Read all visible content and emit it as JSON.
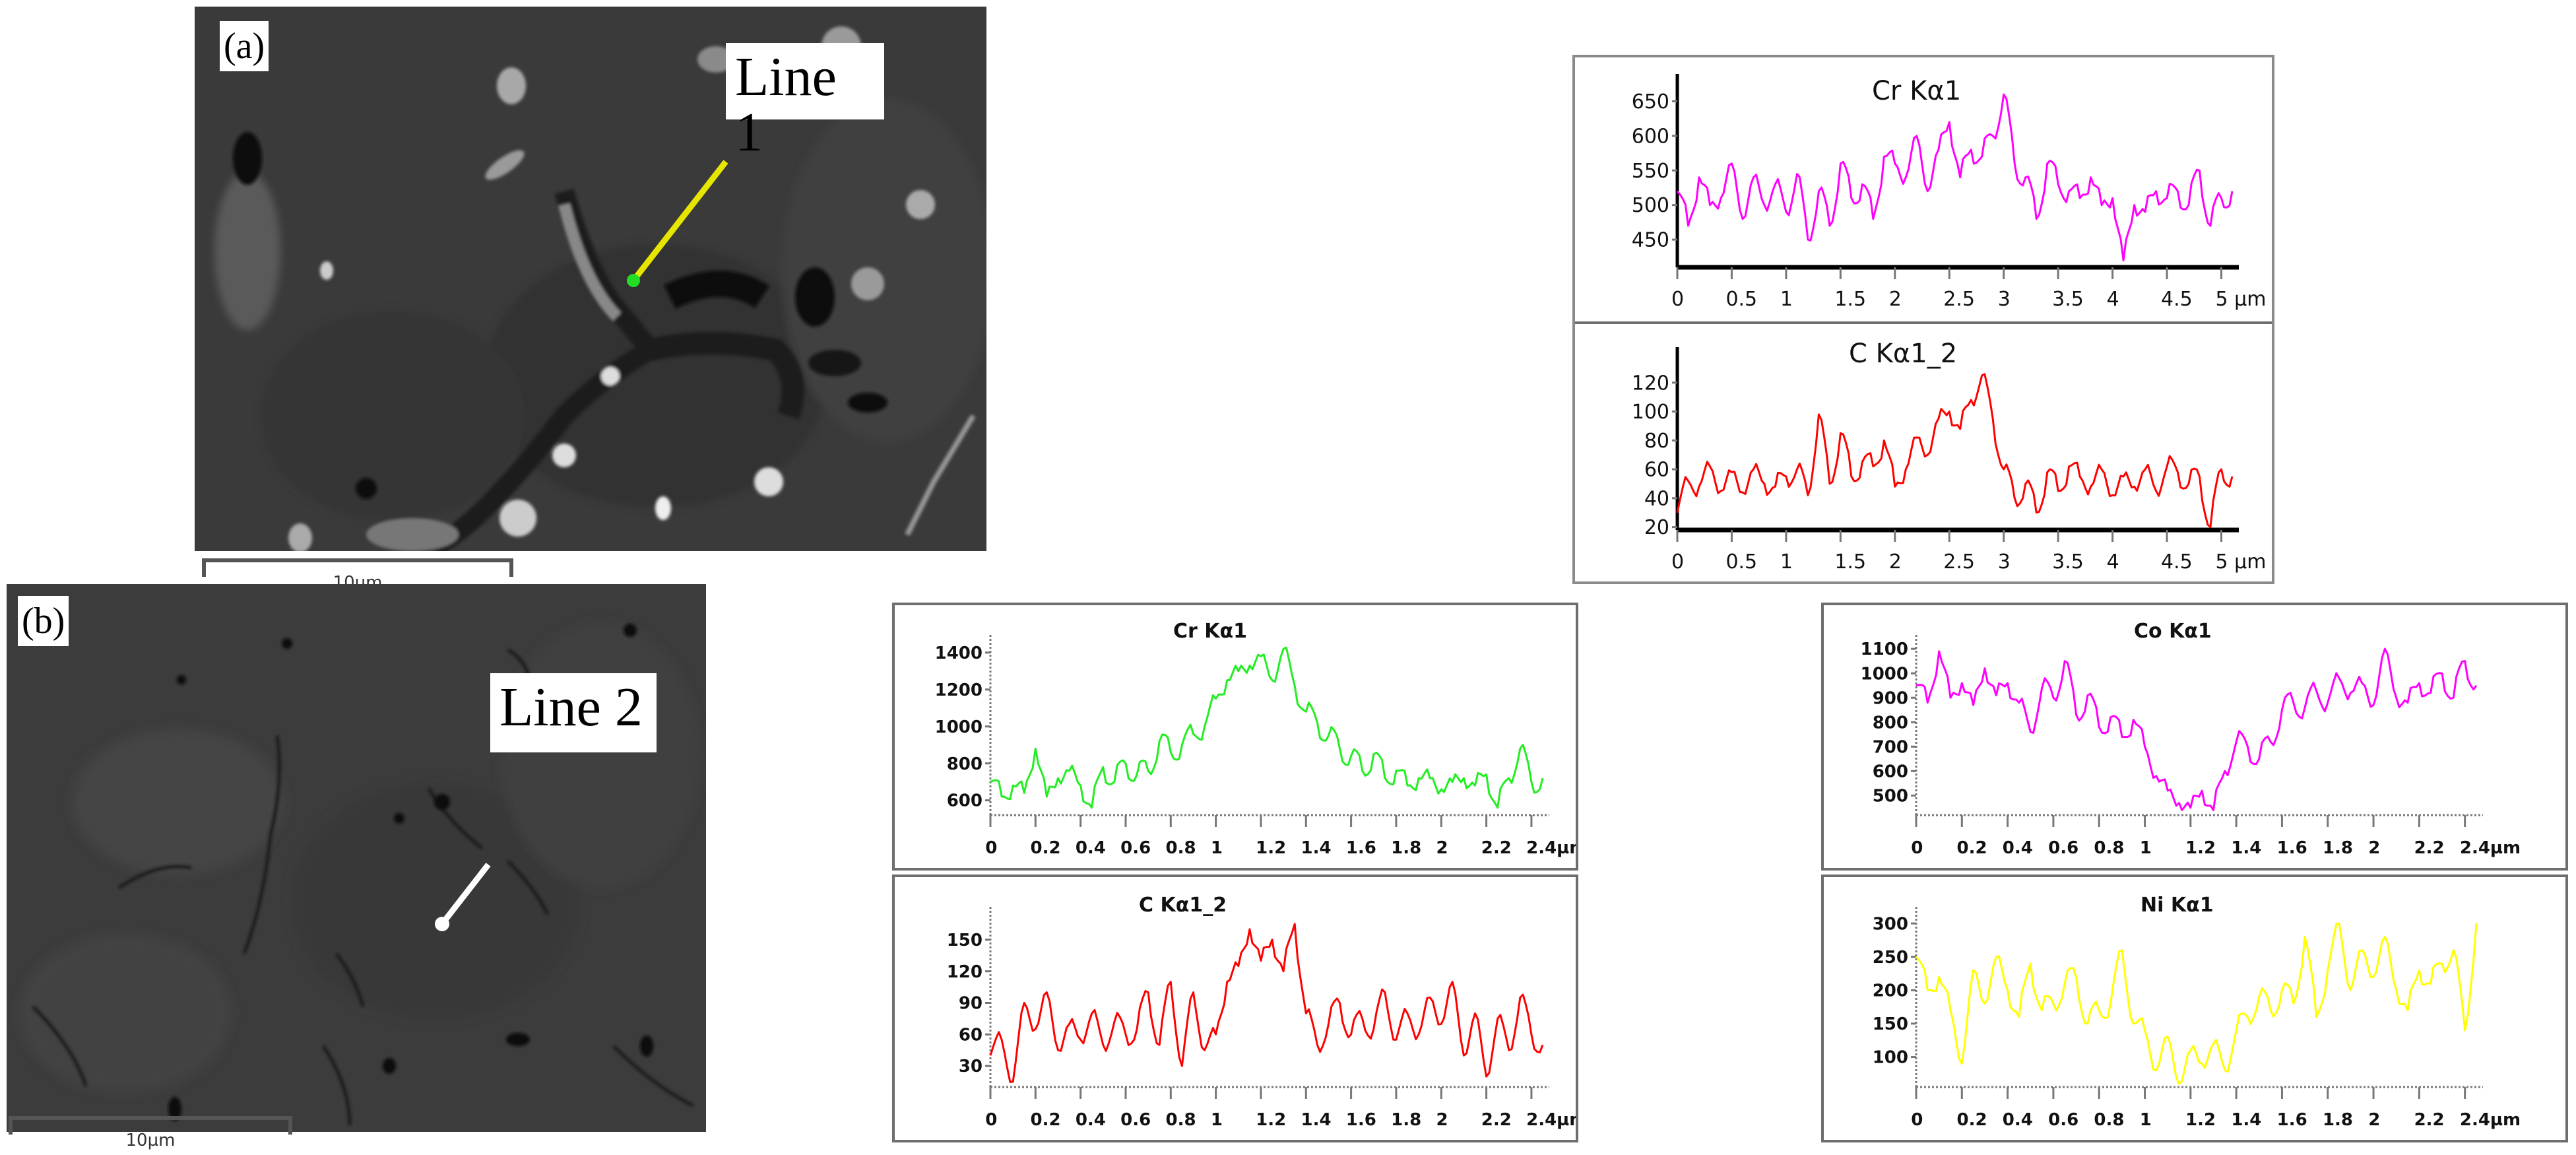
{
  "figure": {
    "panel_a": {
      "label": "(a)",
      "line_label": "Line 1",
      "scale_bar": "10um",
      "line_color": "#e6e600",
      "marker_color": "#22dd22"
    },
    "panel_b": {
      "label": "(b)",
      "line_label": "Line 2",
      "scale_bar": "10µm",
      "line_color": "#ffffff",
      "marker_color": "#ffffff"
    }
  },
  "chart_data": [
    {
      "id": "a_cr",
      "panel": "a",
      "type": "line",
      "title": "Cr Kα1",
      "color": "#ff00ff",
      "xlabel": "µm",
      "ylabel": "",
      "xlim": [
        0,
        5.1
      ],
      "ylim": [
        410,
        680
      ],
      "xticks": [
        0,
        0.5,
        1,
        1.5,
        2,
        2.5,
        3,
        3.5,
        4,
        4.5,
        5
      ],
      "xtick_labels": [
        "0",
        "0.5",
        "1",
        "1.5",
        "2",
        "2.5",
        "3",
        "3.5",
        "4",
        "4.5",
        "5 µm"
      ],
      "yticks": [
        450,
        500,
        550,
        600,
        650
      ],
      "x": [
        0,
        0.1,
        0.2,
        0.3,
        0.4,
        0.5,
        0.6,
        0.7,
        0.8,
        0.9,
        1.0,
        1.1,
        1.2,
        1.3,
        1.4,
        1.5,
        1.6,
        1.7,
        1.8,
        1.9,
        2.0,
        2.1,
        2.2,
        2.3,
        2.4,
        2.5,
        2.6,
        2.7,
        2.8,
        2.9,
        3.0,
        3.1,
        3.2,
        3.3,
        3.4,
        3.5,
        3.6,
        3.7,
        3.8,
        3.9,
        4.0,
        4.1,
        4.2,
        4.3,
        4.4,
        4.5,
        4.6,
        4.7,
        4.8,
        4.9,
        5.0,
        5.1
      ],
      "values": [
        520,
        470,
        540,
        500,
        510,
        560,
        480,
        540,
        500,
        530,
        490,
        545,
        450,
        520,
        470,
        560,
        510,
        530,
        480,
        570,
        560,
        540,
        600,
        520,
        580,
        620,
        540,
        580,
        570,
        600,
        660,
        560,
        540,
        480,
        560,
        530,
        520,
        510,
        540,
        500,
        510,
        420,
        500,
        490,
        520,
        510,
        520,
        500,
        550,
        470,
        510,
        520
      ]
    },
    {
      "id": "a_c",
      "panel": "a",
      "type": "line",
      "title": "C Kα1_2",
      "color": "#ff0000",
      "xlabel": "µm",
      "ylabel": "",
      "xlim": [
        0,
        5.1
      ],
      "ylim": [
        18,
        140
      ],
      "xticks": [
        0,
        0.5,
        1,
        1.5,
        2,
        2.5,
        3,
        3.5,
        4,
        4.5,
        5
      ],
      "xtick_labels": [
        "0",
        "0.5",
        "1",
        "1.5",
        "2",
        "2.5",
        "3",
        "3.5",
        "4",
        "4.5",
        "5 µm"
      ],
      "yticks": [
        20,
        40,
        60,
        80,
        100,
        120
      ],
      "x": [
        0,
        0.1,
        0.2,
        0.3,
        0.4,
        0.5,
        0.6,
        0.7,
        0.8,
        0.9,
        1.0,
        1.1,
        1.2,
        1.3,
        1.4,
        1.5,
        1.6,
        1.7,
        1.8,
        1.9,
        2.0,
        2.1,
        2.2,
        2.3,
        2.4,
        2.5,
        2.6,
        2.7,
        2.8,
        2.9,
        3.0,
        3.1,
        3.2,
        3.3,
        3.4,
        3.5,
        3.6,
        3.7,
        3.8,
        3.9,
        4.0,
        4.1,
        4.2,
        4.3,
        4.4,
        4.5,
        4.6,
        4.7,
        4.8,
        4.9,
        5.0,
        5.1
      ],
      "values": [
        30,
        52,
        48,
        62,
        45,
        58,
        44,
        60,
        50,
        48,
        55,
        60,
        42,
        98,
        50,
        85,
        55,
        65,
        62,
        80,
        48,
        60,
        82,
        70,
        95,
        100,
        88,
        108,
        125,
        95,
        60,
        40,
        50,
        30,
        58,
        45,
        62,
        55,
        48,
        60,
        42,
        55,
        48,
        60,
        45,
        62,
        58,
        50,
        55,
        20,
        60,
        55
      ]
    },
    {
      "id": "b_cr",
      "panel": "b",
      "type": "line",
      "title": "Cr Kα1",
      "color": "#22ee22",
      "xlabel": "µm",
      "ylabel": "",
      "xlim": [
        0,
        2.45
      ],
      "ylim": [
        520,
        1460
      ],
      "xticks": [
        0,
        0.2,
        0.4,
        0.6,
        0.8,
        1,
        1.2,
        1.4,
        1.6,
        1.8,
        2,
        2.2,
        2.4
      ],
      "xtick_labels": [
        "0",
        "0.2",
        "0.4",
        "0.6",
        "0.8",
        "1",
        "1.2",
        "1.4",
        "1.6",
        "1.8",
        "2",
        "2.2",
        "2.4µm"
      ],
      "yticks": [
        600,
        800,
        1000,
        1200,
        1400
      ],
      "x": [
        0,
        0.05,
        0.1,
        0.15,
        0.2,
        0.25,
        0.3,
        0.35,
        0.4,
        0.45,
        0.5,
        0.55,
        0.6,
        0.65,
        0.7,
        0.75,
        0.8,
        0.85,
        0.9,
        0.95,
        1.0,
        1.05,
        1.1,
        1.15,
        1.2,
        1.25,
        1.3,
        1.35,
        1.4,
        1.45,
        1.5,
        1.55,
        1.6,
        1.65,
        1.7,
        1.75,
        1.8,
        1.85,
        1.9,
        1.95,
        2.0,
        2.05,
        2.1,
        2.15,
        2.2,
        2.25,
        2.3,
        2.35,
        2.4,
        2.45
      ],
      "values": [
        700,
        620,
        680,
        640,
        880,
        620,
        720,
        760,
        680,
        560,
        780,
        700,
        800,
        740,
        760,
        920,
        860,
        900,
        960,
        1000,
        1150,
        1250,
        1300,
        1330,
        1380,
        1250,
        1420,
        1220,
        1080,
        1020,
        950,
        880,
        840,
        760,
        850,
        720,
        760,
        680,
        720,
        720,
        660,
        700,
        720,
        680,
        740,
        560,
        720,
        880,
        700,
        720
      ]
    },
    {
      "id": "b_c",
      "panel": "b",
      "type": "line",
      "title": "C Kα1_2",
      "color": "#ff0000",
      "xlabel": "µm",
      "ylabel": "",
      "xlim": [
        0,
        2.45
      ],
      "ylim": [
        10,
        175
      ],
      "xticks": [
        0,
        0.2,
        0.4,
        0.6,
        0.8,
        1,
        1.2,
        1.4,
        1.6,
        1.8,
        2,
        2.2,
        2.4
      ],
      "xtick_labels": [
        "0",
        "0.2",
        "0.4",
        "0.6",
        "0.8",
        "1",
        "1.2",
        "1.4",
        "1.6",
        "1.8",
        "2",
        "2.2",
        "2.4µm"
      ],
      "yticks": [
        30,
        60,
        90,
        120,
        150
      ],
      "x": [
        0,
        0.05,
        0.1,
        0.15,
        0.2,
        0.25,
        0.3,
        0.35,
        0.4,
        0.45,
        0.5,
        0.55,
        0.6,
        0.65,
        0.7,
        0.75,
        0.8,
        0.85,
        0.9,
        0.95,
        1.0,
        1.05,
        1.1,
        1.15,
        1.2,
        1.25,
        1.3,
        1.35,
        1.4,
        1.45,
        1.5,
        1.55,
        1.6,
        1.65,
        1.7,
        1.75,
        1.8,
        1.85,
        1.9,
        1.95,
        2.0,
        2.05,
        2.1,
        2.15,
        2.2,
        2.25,
        2.3,
        2.35,
        2.4,
        2.45
      ],
      "values": [
        40,
        55,
        15,
        90,
        65,
        100,
        45,
        70,
        55,
        80,
        50,
        72,
        60,
        65,
        100,
        50,
        110,
        30,
        100,
        45,
        60,
        110,
        125,
        160,
        130,
        150,
        120,
        165,
        80,
        50,
        70,
        90,
        60,
        75,
        65,
        100,
        55,
        80,
        60,
        95,
        70,
        110,
        40,
        80,
        20,
        75,
        45,
        95,
        60,
        50
      ]
    },
    {
      "id": "b_co",
      "panel": "b",
      "type": "line",
      "title": "Co Kα1",
      "color": "#ff00ff",
      "xlabel": "µm",
      "ylabel": "",
      "xlim": [
        0,
        2.45
      ],
      "ylim": [
        420,
        1130
      ],
      "xticks": [
        0,
        0.2,
        0.4,
        0.6,
        0.8,
        1,
        1.2,
        1.4,
        1.6,
        1.8,
        2,
        2.2,
        2.4
      ],
      "xtick_labels": [
        "0",
        "0.2",
        "0.4",
        "0.6",
        "0.8",
        "1",
        "1.2",
        "1.4",
        "1.6",
        "1.8",
        "2",
        "2.2",
        "2.4µm"
      ],
      "yticks": [
        500,
        600,
        700,
        800,
        900,
        1000,
        1100
      ],
      "x": [
        0,
        0.05,
        0.1,
        0.15,
        0.2,
        0.25,
        0.3,
        0.35,
        0.4,
        0.45,
        0.5,
        0.55,
        0.6,
        0.65,
        0.7,
        0.75,
        0.8,
        0.85,
        0.9,
        0.95,
        1.0,
        1.05,
        1.1,
        1.15,
        1.2,
        1.25,
        1.3,
        1.35,
        1.4,
        1.45,
        1.5,
        1.55,
        1.6,
        1.65,
        1.7,
        1.75,
        1.8,
        1.85,
        1.9,
        1.95,
        2.0,
        2.05,
        2.1,
        2.15,
        2.2,
        2.25,
        2.3,
        2.35,
        2.4,
        2.45
      ],
      "values": [
        950,
        880,
        1090,
        900,
        960,
        870,
        1020,
        910,
        960,
        880,
        760,
        940,
        900,
        1050,
        830,
        910,
        780,
        820,
        740,
        810,
        700,
        580,
        520,
        470,
        450,
        520,
        440,
        600,
        720,
        700,
        650,
        720,
        850,
        880,
        860,
        930,
        880,
        980,
        920,
        960,
        870,
        1100,
        900,
        880,
        960,
        920,
        1000,
        900,
        1050,
        950
      ]
    },
    {
      "id": "b_ni",
      "panel": "b",
      "type": "line",
      "title": "Ni Kα1",
      "color": "#ffff00",
      "xlabel": "µm",
      "ylabel": "",
      "xlim": [
        0,
        2.45
      ],
      "ylim": [
        55,
        315
      ],
      "xticks": [
        0,
        0.2,
        0.4,
        0.6,
        0.8,
        1,
        1.2,
        1.4,
        1.6,
        1.8,
        2,
        2.2,
        2.4
      ],
      "xtick_labels": [
        "0",
        "0.2",
        "0.4",
        "0.6",
        "0.8",
        "1",
        "1.2",
        "1.4",
        "1.6",
        "1.8",
        "2",
        "2.2",
        "2.4µm"
      ],
      "yticks": [
        100,
        150,
        200,
        250,
        300
      ],
      "x": [
        0,
        0.05,
        0.1,
        0.15,
        0.2,
        0.25,
        0.3,
        0.35,
        0.4,
        0.45,
        0.5,
        0.55,
        0.6,
        0.65,
        0.7,
        0.75,
        0.8,
        0.85,
        0.9,
        0.95,
        1.0,
        1.05,
        1.1,
        1.15,
        1.2,
        1.25,
        1.3,
        1.35,
        1.4,
        1.45,
        1.5,
        1.55,
        1.6,
        1.65,
        1.7,
        1.75,
        1.8,
        1.85,
        1.9,
        1.95,
        2.0,
        2.05,
        2.1,
        2.15,
        2.2,
        2.25,
        2.3,
        2.35,
        2.4,
        2.45
      ],
      "values": [
        250,
        200,
        220,
        170,
        90,
        230,
        180,
        250,
        200,
        160,
        240,
        170,
        180,
        210,
        220,
        150,
        170,
        180,
        260,
        150,
        140,
        80,
        130,
        60,
        110,
        90,
        120,
        80,
        140,
        160,
        190,
        170,
        200,
        180,
        280,
        160,
        230,
        300,
        200,
        260,
        220,
        280,
        200,
        170,
        230,
        210,
        240,
        260,
        140,
        300
      ]
    }
  ]
}
